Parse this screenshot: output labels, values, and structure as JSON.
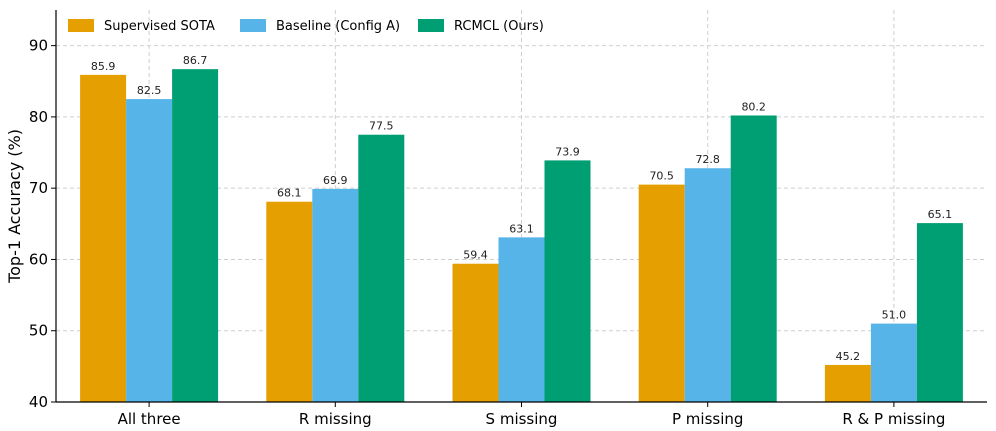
{
  "chart_data": {
    "type": "bar",
    "title": "",
    "xlabel": "",
    "ylabel": "Top-1 Accuracy (%)",
    "ylim": [
      40,
      95
    ],
    "yticks": [
      40,
      50,
      60,
      70,
      80,
      90
    ],
    "grid": true,
    "legend_position": "top-left",
    "categories": [
      "All three",
      "R missing",
      "S missing",
      "P missing",
      "R & P missing"
    ],
    "series": [
      {
        "name": "Supervised SOTA",
        "color": "#E69F00",
        "values": [
          85.9,
          68.1,
          59.4,
          70.5,
          45.2
        ],
        "labels": [
          "85.9",
          "68.1",
          "59.4",
          "70.5",
          "45.2"
        ]
      },
      {
        "name": "Baseline (Config A)",
        "color": "#56B4E9",
        "values": [
          82.5,
          69.9,
          63.1,
          72.8,
          51.0
        ],
        "labels": [
          "82.5",
          "69.9",
          "63.1",
          "72.8",
          "51.0"
        ]
      },
      {
        "name": "RCMCL (Ours)",
        "color": "#009E73",
        "values": [
          86.7,
          77.5,
          73.9,
          80.2,
          65.1
        ],
        "labels": [
          "86.7",
          "77.5",
          "73.9",
          "80.2",
          "65.1"
        ]
      }
    ]
  }
}
